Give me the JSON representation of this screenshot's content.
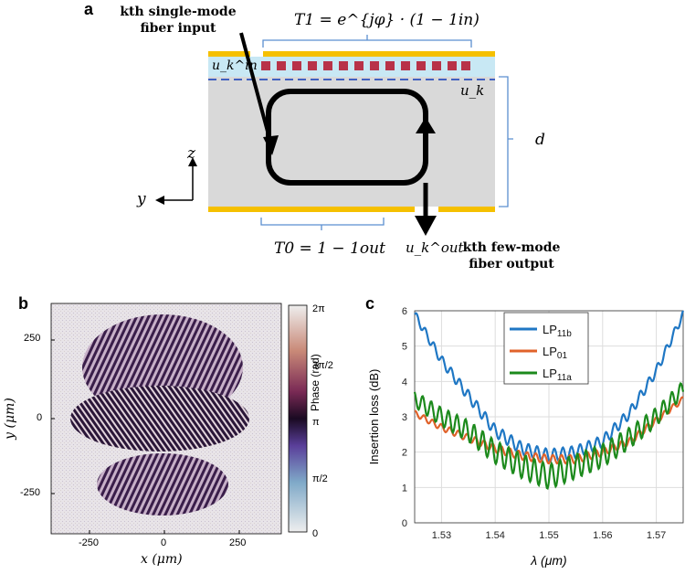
{
  "panel_a": {
    "label": "a",
    "input_label_line1": "kth single-mode",
    "input_label_line2": "fiber input",
    "output_label_line1": "kth few-mode",
    "output_label_line2": "fiber output",
    "T1": "T1 = e^{jφ} · (1 − 1in)",
    "T0": "T0 = 1 − 1out",
    "u_in": "u_k^in",
    "u_k": "u_k",
    "u_out": "u_k^out",
    "d": "d",
    "z": "z",
    "y": "y",
    "colors": {
      "gold": "#f5c000",
      "blue_layer": "#c8e8f4",
      "grating": "#b83248",
      "body": "#d9d9d9",
      "dashed": "#4060c0"
    }
  },
  "panel_b": {
    "label": "b",
    "xlabel": "x (μm)",
    "ylabel": "y (μm)",
    "xticks": [
      "-250",
      "0",
      "250"
    ],
    "yticks": [
      "250",
      "0",
      "-250"
    ],
    "colorbar_label": "Phase (rad)",
    "colorbar_ticks": [
      "2π",
      "3π/2",
      "π",
      "π/2",
      "0"
    ]
  },
  "panel_c": {
    "label": "c",
    "chart_data": {
      "type": "line",
      "xlabel": "λ (μm)",
      "ylabel": "Insertion loss (dB)",
      "xlim": [
        1.525,
        1.575
      ],
      "ylim": [
        0,
        6
      ],
      "xticks": [
        "1.53",
        "1.54",
        "1.55",
        "1.56",
        "1.57"
      ],
      "yticks": [
        "0",
        "1",
        "2",
        "3",
        "4",
        "5",
        "6"
      ],
      "grid": true,
      "legend": "top-center",
      "x": [
        1.525,
        1.53,
        1.535,
        1.54,
        1.545,
        1.55,
        1.555,
        1.56,
        1.565,
        1.57,
        1.575
      ],
      "series": [
        {
          "name": "LP11b",
          "color": "#1f77c4",
          "values": [
            5.9,
            4.6,
            3.6,
            2.6,
            2.1,
            1.9,
            2.0,
            2.3,
            3.1,
            4.3,
            5.9
          ]
        },
        {
          "name": "LP01",
          "color": "#e0622a",
          "values": [
            3.1,
            2.7,
            2.4,
            2.1,
            1.9,
            1.8,
            1.8,
            2.0,
            2.3,
            2.9,
            3.5
          ]
        },
        {
          "name": "LP11a",
          "color": "#1c8a1c",
          "values": [
            3.5,
            3.0,
            2.6,
            2.0,
            1.6,
            1.3,
            1.6,
            1.9,
            2.4,
            3.0,
            3.8
          ]
        }
      ]
    }
  }
}
